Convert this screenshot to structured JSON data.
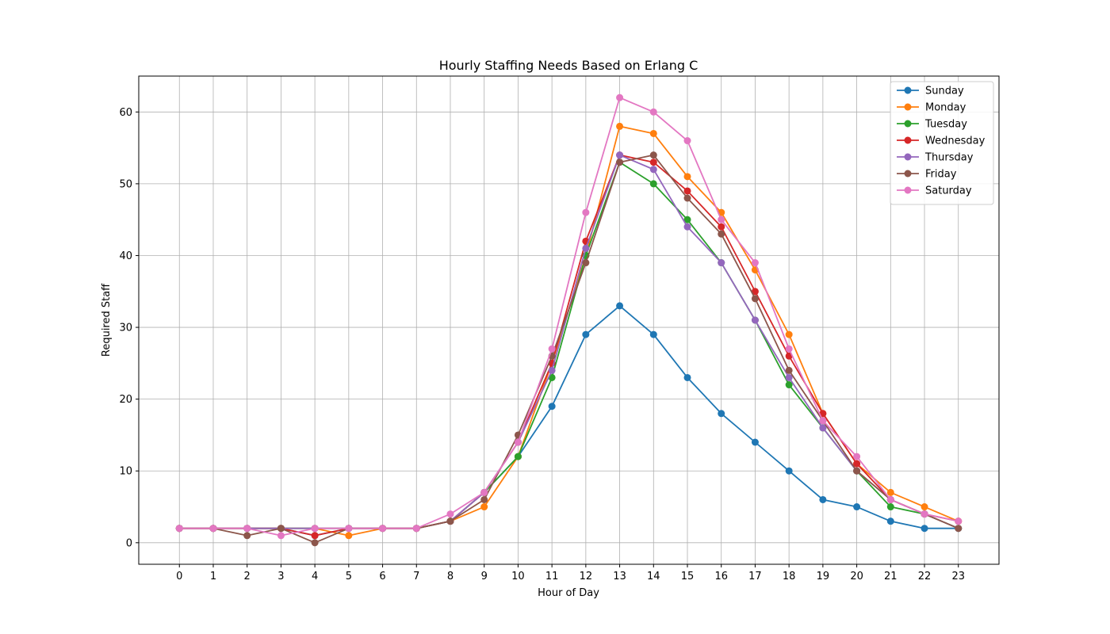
{
  "chart_data": {
    "type": "line",
    "title": "Hourly Staffing Needs Based on Erlang C",
    "xlabel": "Hour of Day",
    "ylabel": "Required Staff",
    "x": [
      0,
      1,
      2,
      3,
      4,
      5,
      6,
      7,
      8,
      9,
      10,
      11,
      12,
      13,
      14,
      15,
      16,
      17,
      18,
      19,
      20,
      21,
      22,
      23
    ],
    "xlim": [
      -1.2,
      24.2
    ],
    "ylim": [
      -3,
      65
    ],
    "yticks": [
      0,
      10,
      20,
      30,
      40,
      50,
      60
    ],
    "grid": true,
    "legend": "top-right",
    "series": [
      {
        "name": "Sunday",
        "color": "#1f77b4",
        "values": [
          2,
          2,
          2,
          2,
          1,
          2,
          2,
          2,
          3,
          7,
          12,
          19,
          29,
          33,
          29,
          23,
          18,
          14,
          10,
          6,
          5,
          3,
          2,
          2
        ]
      },
      {
        "name": "Monday",
        "color": "#ff7f0e",
        "values": [
          2,
          2,
          2,
          2,
          2,
          1,
          2,
          2,
          3,
          5,
          12,
          25,
          40,
          58,
          57,
          51,
          46,
          38,
          29,
          18,
          11,
          7,
          5,
          3
        ]
      },
      {
        "name": "Tuesday",
        "color": "#2ca02c",
        "values": [
          2,
          2,
          2,
          2,
          2,
          2,
          2,
          2,
          3,
          7,
          12,
          23,
          40,
          53,
          50,
          45,
          39,
          31,
          22,
          16,
          10,
          5,
          4,
          2
        ]
      },
      {
        "name": "Wednesday",
        "color": "#d62728",
        "values": [
          2,
          2,
          2,
          2,
          1,
          2,
          2,
          2,
          3,
          7,
          14,
          25,
          42,
          54,
          53,
          49,
          44,
          35,
          26,
          18,
          11,
          6,
          4,
          3
        ]
      },
      {
        "name": "Thursday",
        "color": "#9467bd",
        "values": [
          2,
          2,
          2,
          2,
          2,
          2,
          2,
          2,
          3,
          7,
          14,
          24,
          41,
          54,
          52,
          44,
          39,
          31,
          23,
          16,
          10,
          6,
          4,
          2
        ]
      },
      {
        "name": "Friday",
        "color": "#8c564b",
        "values": [
          2,
          2,
          1,
          2,
          0,
          2,
          2,
          2,
          3,
          6,
          15,
          26,
          39,
          53,
          54,
          48,
          43,
          34,
          24,
          17,
          10,
          6,
          4,
          2
        ]
      },
      {
        "name": "Saturday",
        "color": "#e377c2",
        "values": [
          2,
          2,
          2,
          1,
          2,
          2,
          2,
          2,
          4,
          7,
          14,
          27,
          46,
          62,
          60,
          56,
          45,
          39,
          27,
          17,
          12,
          6,
          4,
          3
        ]
      }
    ]
  }
}
